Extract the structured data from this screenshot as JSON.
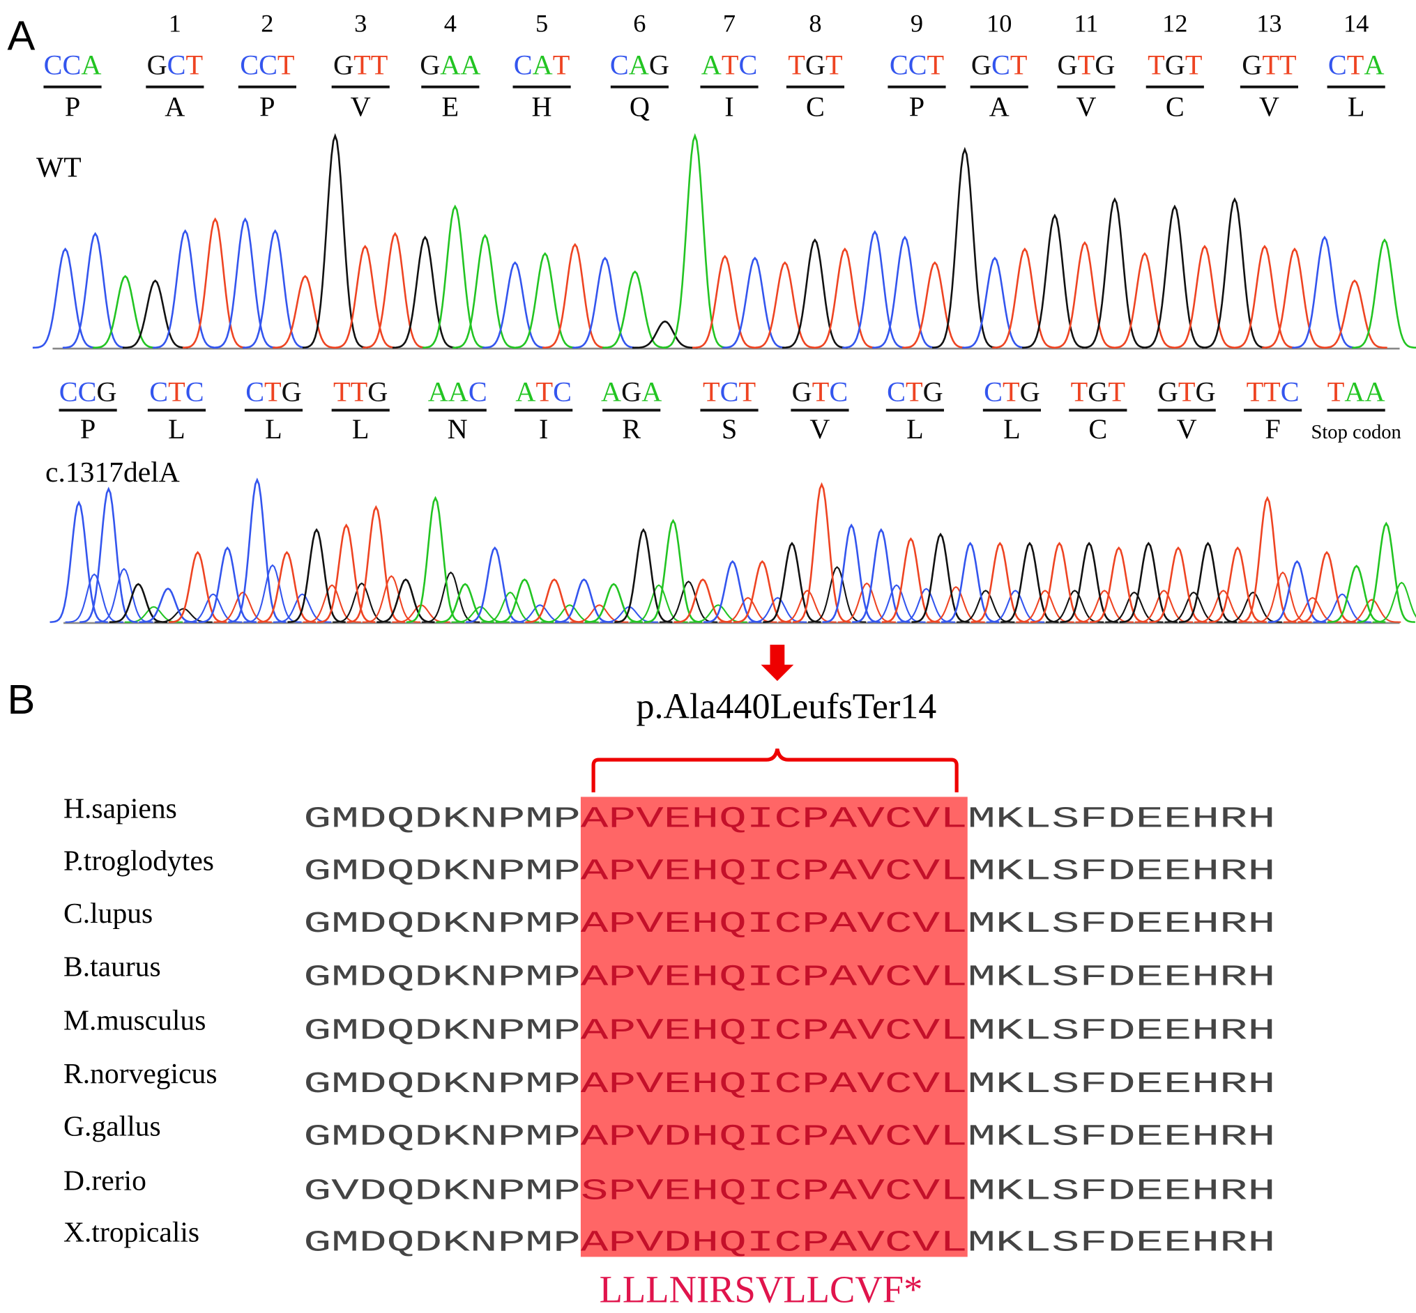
{
  "panel_a": {
    "label": "A",
    "codon_numbers": [
      "1",
      "2",
      "3",
      "4",
      "5",
      "6",
      "7",
      "8",
      "9",
      "10",
      "11",
      "12",
      "13",
      "14"
    ],
    "wt": {
      "label": "WT",
      "codons": [
        {
          "bases": "CCA",
          "aa": "P"
        },
        {
          "bases": "GCT",
          "aa": "A"
        },
        {
          "bases": "CCT",
          "aa": "P"
        },
        {
          "bases": "GTT",
          "aa": "V"
        },
        {
          "bases": "GAA",
          "aa": "E"
        },
        {
          "bases": "CAT",
          "aa": "H"
        },
        {
          "bases": "CAG",
          "aa": "Q"
        },
        {
          "bases": "ATC",
          "aa": "I"
        },
        {
          "bases": "TGT",
          "aa": "C"
        },
        {
          "bases": "CCT",
          "aa": "P"
        },
        {
          "bases": "GCT",
          "aa": "A"
        },
        {
          "bases": "GTG",
          "aa": "V"
        },
        {
          "bases": "TGT",
          "aa": "C"
        },
        {
          "bases": "GTT",
          "aa": "V"
        },
        {
          "bases": "CTA",
          "aa": "L"
        }
      ]
    },
    "mutant": {
      "label": "c.1317delA",
      "codons": [
        {
          "bases": "CCG",
          "aa": "P"
        },
        {
          "bases": "CTC",
          "aa": "L"
        },
        {
          "bases": "CTG",
          "aa": "L"
        },
        {
          "bases": "TTG",
          "aa": "L"
        },
        {
          "bases": "AAC",
          "aa": "N"
        },
        {
          "bases": "ATC",
          "aa": "I"
        },
        {
          "bases": "AGA",
          "aa": "R"
        },
        {
          "bases": "TCT",
          "aa": "S"
        },
        {
          "bases": "GTC",
          "aa": "V"
        },
        {
          "bases": "CTG",
          "aa": "L"
        },
        {
          "bases": "CTG",
          "aa": "L"
        },
        {
          "bases": "TGT",
          "aa": "C"
        },
        {
          "bases": "GTG",
          "aa": "V"
        },
        {
          "bases": "TTC",
          "aa": "F"
        },
        {
          "bases": "TAA",
          "aa": "Stop codon"
        }
      ]
    }
  },
  "panel_b": {
    "label": "B",
    "mutation": "p.Ala440LeufsTer14",
    "species": [
      {
        "name": "H.sapiens",
        "pre": "GMDQDKNPMP",
        "mid": "APVEHQICPAVCVL",
        "post": "MKLSFDEEHRH"
      },
      {
        "name": "P.troglodytes",
        "pre": "GMDQDKNPMP",
        "mid": "APVEHQICPAVCVL",
        "post": "MKLSFDEEHRH"
      },
      {
        "name": "C.lupus",
        "pre": "GMDQDKNPMP",
        "mid": "APVEHQICPAVCVL",
        "post": "MKLSFDEEHRH"
      },
      {
        "name": "B.taurus",
        "pre": "GMDQDKNPMP",
        "mid": "APVEHQICPAVCVL",
        "post": "MKLSFDEEHRH"
      },
      {
        "name": "M.musculus",
        "pre": "GMDQDKNPMP",
        "mid": "APVEHQICPAVCVL",
        "post": "MKLSFDEEHRH"
      },
      {
        "name": "R.norvegicus",
        "pre": "GMDQDKNPMP",
        "mid": "APVEHQICPAVCVL",
        "post": "MKLSFDEEHRH"
      },
      {
        "name": "G.gallus",
        "pre": "GMDQDKNPMP",
        "mid": "APVDHQICPAVCVL",
        "post": "MKLSFDEEHRH"
      },
      {
        "name": "D.rerio",
        "pre": "GVDQDKNPMP",
        "mid": "SPVEHQICPAVCVL",
        "post": "MKLSFDEEHRH"
      },
      {
        "name": "X.tropicalis",
        "pre": "GMDQDKNPMP",
        "mid": "APVDHQICPAVCVL",
        "post": "MKLSFDEEHRH"
      }
    ],
    "new_sequence": "LLLNIRSVLLCVF*"
  }
}
